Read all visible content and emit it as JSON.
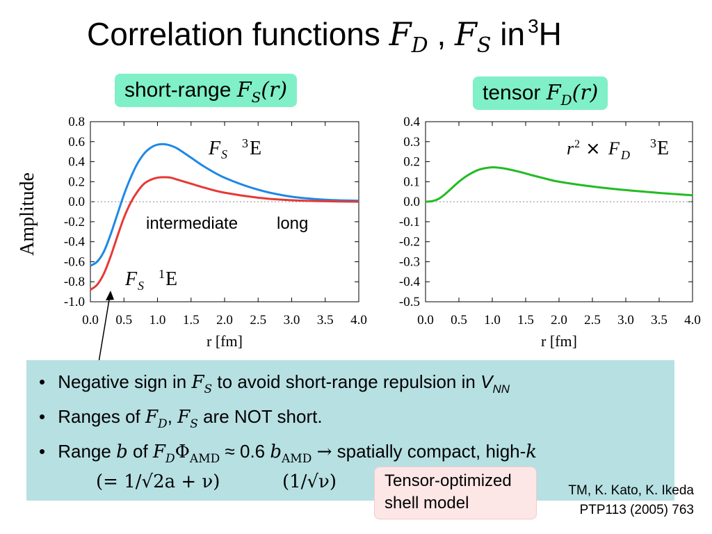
{
  "slide": {
    "title_text": "Correlation functions",
    "title_fd": "F",
    "title_fd_sub": "D",
    "title_sep": ",",
    "title_fs": "F",
    "title_fs_sub": "S",
    "title_in": "in",
    "title_mass": "3",
    "title_nucleus": "H"
  },
  "pills": {
    "left_text": "short-range",
    "left_func": "F",
    "left_sub": "S",
    "left_arg": "(r)",
    "right_text": "tensor",
    "right_func": "F",
    "right_sub": "D",
    "right_arg": "(r)"
  },
  "annotations": {
    "fs3_label": "F",
    "fs3_sub": "S",
    "fs3_state": "E",
    "fs3_sup": "3",
    "fs1_label": "F",
    "fs1_sub": "S",
    "fs1_state": "E",
    "fs1_sup": "1",
    "region_mid": "intermediate",
    "region_long": "long",
    "fd_r": "r",
    "fd_r_sup": "2",
    "fd_times": "×",
    "fd_label": "F",
    "fd_sub": "D",
    "fd_state": "E",
    "fd_sup": "3"
  },
  "colors": {
    "blue": "#1e88e5",
    "red": "#e53935",
    "green": "#22bb22",
    "pill": "#7ff0c8",
    "notes_bg": "#b7e0e3",
    "tosm_bg": "#fde6e6"
  },
  "chart_data": [
    {
      "type": "line",
      "title": "",
      "xlabel": "r [fm]",
      "ylabel": "Amplitude",
      "xlim": [
        0,
        4
      ],
      "ylim": [
        -1.0,
        0.8
      ],
      "xticks": [
        "0.0",
        "0.5",
        "1.0",
        "1.5",
        "2.0",
        "2.5",
        "3.0",
        "3.5",
        "4.0"
      ],
      "yticks": [
        "0.8",
        "0.6",
        "0.4",
        "0.2",
        "0.0",
        "-0.2",
        "-0.4",
        "-0.6",
        "-0.8",
        "-1.0"
      ],
      "grid": false,
      "zero_line": true,
      "series": [
        {
          "name": "F_S 3E",
          "color": "#1e88e5",
          "x": [
            0.0,
            0.1,
            0.2,
            0.3,
            0.4,
            0.5,
            0.6,
            0.7,
            0.8,
            0.9,
            1.0,
            1.1,
            1.2,
            1.3,
            1.5,
            1.7,
            2.0,
            2.5,
            3.0,
            3.5,
            4.0
          ],
          "y": [
            -0.64,
            -0.6,
            -0.5,
            -0.33,
            -0.13,
            0.07,
            0.24,
            0.38,
            0.48,
            0.54,
            0.57,
            0.575,
            0.56,
            0.53,
            0.44,
            0.35,
            0.24,
            0.12,
            0.05,
            0.02,
            0.01
          ]
        },
        {
          "name": "F_S 1E",
          "color": "#e53935",
          "x": [
            0.0,
            0.1,
            0.2,
            0.3,
            0.4,
            0.5,
            0.6,
            0.7,
            0.8,
            0.9,
            1.0,
            1.1,
            1.2,
            1.3,
            1.5,
            1.7,
            2.0,
            2.5,
            3.0,
            3.5,
            4.0
          ],
          "y": [
            -0.88,
            -0.83,
            -0.72,
            -0.55,
            -0.35,
            -0.16,
            -0.01,
            0.1,
            0.18,
            0.22,
            0.24,
            0.245,
            0.24,
            0.22,
            0.18,
            0.14,
            0.09,
            0.04,
            0.015,
            0.005,
            0.0
          ]
        }
      ]
    },
    {
      "type": "line",
      "title": "",
      "xlabel": "r [fm]",
      "ylabel": "",
      "xlim": [
        0,
        4
      ],
      "ylim": [
        -0.5,
        0.4
      ],
      "xticks": [
        "0.0",
        "0.5",
        "1.0",
        "1.5",
        "2.0",
        "2.5",
        "3.0",
        "3.5",
        "4.0"
      ],
      "yticks": [
        "0.4",
        "0.3",
        "0.2",
        "0.1",
        "0.0",
        "-0.1",
        "-0.2",
        "-0.3",
        "-0.4",
        "-0.5"
      ],
      "grid": false,
      "zero_line": true,
      "series": [
        {
          "name": "r2 × F_D 3E",
          "color": "#22bb22",
          "x": [
            0.0,
            0.1,
            0.2,
            0.3,
            0.4,
            0.5,
            0.6,
            0.7,
            0.8,
            0.9,
            1.0,
            1.1,
            1.2,
            1.4,
            1.6,
            1.8,
            2.0,
            2.5,
            3.0,
            3.5,
            4.0
          ],
          "y": [
            0.0,
            0.003,
            0.015,
            0.04,
            0.07,
            0.1,
            0.125,
            0.145,
            0.16,
            0.168,
            0.172,
            0.17,
            0.165,
            0.15,
            0.132,
            0.115,
            0.1,
            0.076,
            0.058,
            0.044,
            0.032
          ]
        }
      ]
    }
  ],
  "notes": {
    "b1_pre": "Negative sign in",
    "b1_f": "F",
    "b1_sub": "S",
    "b1_post": "to avoid short-range repulsion in",
    "b1_v": "V",
    "b1_vsub": "NN",
    "b2_pre": "Ranges of",
    "b2_f1": "F",
    "b2_f1_sub": "D",
    "b2_comma": ",",
    "b2_f2": "F",
    "b2_f2_sub": "S",
    "b2_post": "are NOT short.",
    "b3_pre": "Range",
    "b3_b": "b",
    "b3_of": "of",
    "b3_f": "F",
    "b3_f_sub": "D",
    "b3_phi": "Φ",
    "b3_phi_sub": "AMD",
    "b3_approx": "≈ 0.6",
    "b3_b2": "b",
    "b3_b2_sub": "AMD",
    "b3_arrow": "→",
    "b3_post": "spatially compact, high-",
    "b3_k": "k",
    "formula_left": "(= 1/√2a + ν)",
    "formula_right": "(1/√ν)"
  },
  "tosm": {
    "line1": "Tensor-optimized",
    "line2": "shell model"
  },
  "reference": {
    "line1": "TM, K. Kato, K. Ikeda",
    "line2": "PTP113 (2005) 763"
  }
}
